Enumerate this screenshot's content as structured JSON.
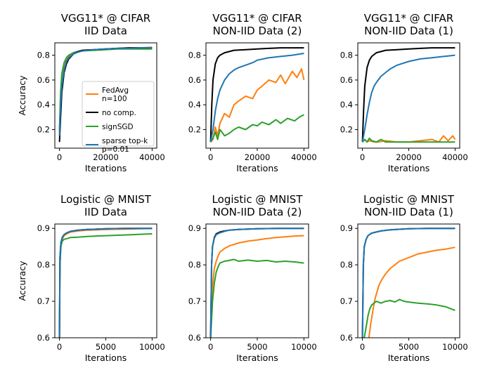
{
  "colors": {
    "FedAvg": "#ff7f0e",
    "no comp.": "#000000",
    "signSGD": "#2ca02c",
    "sparse top-k": "#1f77b4"
  },
  "legend": {
    "placement": "lower-right of top-left panel",
    "entries": [
      {
        "key": "FedAvg",
        "lines": [
          "FedAvg",
          "n=100"
        ]
      },
      {
        "key": "no comp.",
        "lines": [
          "no comp."
        ]
      },
      {
        "key": "signSGD",
        "lines": [
          "signSGD"
        ]
      },
      {
        "key": "sparse top-k",
        "lines": [
          "sparse top-k",
          "p=0.01"
        ]
      }
    ]
  },
  "chart_data": [
    {
      "type": "line",
      "title": [
        "VGG11* @ CIFAR",
        "IID Data"
      ],
      "xlabel": "Iterations",
      "ylabel": "Accuracy",
      "xlim": [
        -2000,
        42000
      ],
      "ylim": [
        0.05,
        0.9
      ],
      "xticks": [
        0,
        20000,
        40000
      ],
      "yticks": [
        0.2,
        0.4,
        0.6,
        0.8
      ],
      "series": [
        {
          "name": "FedAvg",
          "x": [
            0,
            500,
            1000,
            2000,
            3000,
            4000,
            6000,
            8000,
            10000,
            15000,
            20000,
            25000,
            30000,
            35000,
            40000
          ],
          "y": [
            0.18,
            0.42,
            0.58,
            0.7,
            0.76,
            0.79,
            0.82,
            0.83,
            0.84,
            0.845,
            0.85,
            0.855,
            0.86,
            0.86,
            0.865
          ]
        },
        {
          "name": "no comp.",
          "x": [
            0,
            500,
            1000,
            2000,
            3000,
            4000,
            6000,
            8000,
            10000,
            15000,
            20000,
            25000,
            30000,
            35000,
            40000
          ],
          "y": [
            0.1,
            0.3,
            0.5,
            0.66,
            0.73,
            0.77,
            0.81,
            0.83,
            0.84,
            0.845,
            0.85,
            0.855,
            0.86,
            0.86,
            0.86
          ]
        },
        {
          "name": "signSGD",
          "x": [
            0,
            500,
            1000,
            2000,
            3000,
            4000,
            6000,
            8000,
            10000,
            15000,
            20000,
            25000,
            30000,
            35000,
            40000
          ],
          "y": [
            0.2,
            0.5,
            0.65,
            0.74,
            0.78,
            0.8,
            0.82,
            0.83,
            0.835,
            0.84,
            0.845,
            0.85,
            0.85,
            0.85,
            0.85
          ]
        },
        {
          "name": "sparse top-k",
          "x": [
            0,
            500,
            1000,
            2000,
            3000,
            4000,
            6000,
            8000,
            10000,
            15000,
            20000,
            25000,
            30000,
            35000,
            40000
          ],
          "y": [
            0.15,
            0.4,
            0.55,
            0.68,
            0.75,
            0.78,
            0.81,
            0.825,
            0.835,
            0.845,
            0.85,
            0.855,
            0.855,
            0.86,
            0.86
          ]
        }
      ]
    },
    {
      "type": "line",
      "title": [
        "VGG11* @ CIFAR",
        "NON-IID Data (2)"
      ],
      "xlabel": "Iterations",
      "ylabel": "",
      "xlim": [
        -2000,
        42000
      ],
      "ylim": [
        0.05,
        0.9
      ],
      "xticks": [
        0,
        20000,
        40000
      ],
      "yticks": [
        0.2,
        0.4,
        0.6,
        0.8
      ],
      "series": [
        {
          "name": "FedAvg",
          "x": [
            0,
            1000,
            2000,
            3000,
            4000,
            6000,
            8000,
            10000,
            12000,
            15000,
            18000,
            20000,
            22000,
            25000,
            28000,
            30000,
            32000,
            35000,
            37000,
            39000,
            40000
          ],
          "y": [
            0.1,
            0.12,
            0.22,
            0.15,
            0.25,
            0.33,
            0.3,
            0.4,
            0.43,
            0.47,
            0.45,
            0.52,
            0.55,
            0.6,
            0.58,
            0.64,
            0.57,
            0.67,
            0.62,
            0.69,
            0.6
          ]
        },
        {
          "name": "no comp.",
          "x": [
            0,
            500,
            1000,
            2000,
            3000,
            4000,
            6000,
            8000,
            10000,
            15000,
            20000,
            25000,
            30000,
            35000,
            40000
          ],
          "y": [
            0.1,
            0.4,
            0.6,
            0.73,
            0.78,
            0.8,
            0.82,
            0.83,
            0.84,
            0.845,
            0.85,
            0.855,
            0.86,
            0.86,
            0.86
          ]
        },
        {
          "name": "signSGD",
          "x": [
            0,
            1000,
            2000,
            3000,
            4000,
            6000,
            8000,
            10000,
            12000,
            15000,
            18000,
            20000,
            22000,
            25000,
            28000,
            30000,
            33000,
            36000,
            38000,
            40000
          ],
          "y": [
            0.1,
            0.13,
            0.18,
            0.12,
            0.2,
            0.15,
            0.17,
            0.2,
            0.22,
            0.2,
            0.24,
            0.23,
            0.26,
            0.24,
            0.28,
            0.25,
            0.29,
            0.27,
            0.3,
            0.32
          ]
        },
        {
          "name": "sparse top-k",
          "x": [
            0,
            1000,
            2000,
            3000,
            4000,
            6000,
            8000,
            10000,
            12000,
            15000,
            18000,
            20000,
            25000,
            30000,
            35000,
            40000
          ],
          "y": [
            0.1,
            0.2,
            0.35,
            0.45,
            0.52,
            0.6,
            0.65,
            0.68,
            0.7,
            0.72,
            0.74,
            0.76,
            0.78,
            0.79,
            0.8,
            0.815
          ]
        }
      ]
    },
    {
      "type": "line",
      "title": [
        "VGG11* @ CIFAR",
        "NON-IID Data (1)"
      ],
      "xlabel": "Iterations",
      "ylabel": "",
      "xlim": [
        -2000,
        42000
      ],
      "ylim": [
        0.05,
        0.9
      ],
      "xticks": [
        0,
        20000,
        40000
      ],
      "yticks": [
        0.2,
        0.4,
        0.6,
        0.8
      ],
      "series": [
        {
          "name": "FedAvg",
          "x": [
            0,
            1000,
            2000,
            3000,
            5000,
            7000,
            10000,
            15000,
            20000,
            25000,
            30000,
            33000,
            35000,
            37000,
            39000,
            40000
          ],
          "y": [
            0.1,
            0.12,
            0.1,
            0.11,
            0.1,
            0.1,
            0.11,
            0.1,
            0.1,
            0.11,
            0.12,
            0.1,
            0.15,
            0.11,
            0.15,
            0.12
          ]
        },
        {
          "name": "no comp.",
          "x": [
            0,
            500,
            1000,
            2000,
            3000,
            4000,
            6000,
            8000,
            10000,
            15000,
            20000,
            25000,
            30000,
            35000,
            40000
          ],
          "y": [
            0.1,
            0.35,
            0.55,
            0.7,
            0.76,
            0.79,
            0.82,
            0.83,
            0.84,
            0.845,
            0.85,
            0.855,
            0.86,
            0.86,
            0.86
          ]
        },
        {
          "name": "signSGD",
          "x": [
            0,
            1000,
            2000,
            3000,
            4000,
            6000,
            8000,
            10000,
            15000,
            20000,
            25000,
            30000,
            35000,
            40000
          ],
          "y": [
            0.1,
            0.12,
            0.1,
            0.13,
            0.11,
            0.1,
            0.12,
            0.1,
            0.1,
            0.1,
            0.1,
            0.1,
            0.1,
            0.1
          ]
        },
        {
          "name": "sparse top-k",
          "x": [
            0,
            1000,
            2000,
            3000,
            4000,
            5000,
            6000,
            8000,
            10000,
            12000,
            15000,
            20000,
            25000,
            30000,
            35000,
            40000
          ],
          "y": [
            0.1,
            0.2,
            0.32,
            0.42,
            0.5,
            0.55,
            0.58,
            0.63,
            0.66,
            0.69,
            0.72,
            0.75,
            0.77,
            0.78,
            0.79,
            0.8
          ]
        }
      ]
    },
    {
      "type": "line",
      "title": [
        "Logistic @ MNIST",
        "IID Data"
      ],
      "xlabel": "Iterations",
      "ylabel": "Accuracy",
      "xlim": [
        -500,
        10500
      ],
      "ylim": [
        0.6,
        0.912
      ],
      "xticks": [
        0,
        5000,
        10000
      ],
      "yticks": [
        0.6,
        0.7,
        0.8,
        0.9
      ],
      "series": [
        {
          "name": "FedAvg",
          "x": [
            0,
            50,
            150,
            300,
            500,
            800,
            1200,
            2000,
            3000,
            5000,
            7000,
            10000
          ],
          "y": [
            0.6,
            0.8,
            0.85,
            0.87,
            0.88,
            0.885,
            0.89,
            0.893,
            0.895,
            0.897,
            0.898,
            0.9
          ]
        },
        {
          "name": "no comp.",
          "x": [
            0,
            50,
            150,
            300,
            500,
            800,
            1200,
            2000,
            3000,
            5000,
            7000,
            10000
          ],
          "y": [
            0.6,
            0.82,
            0.86,
            0.875,
            0.883,
            0.888,
            0.892,
            0.895,
            0.897,
            0.899,
            0.9,
            0.9
          ]
        },
        {
          "name": "signSGD",
          "x": [
            0,
            50,
            150,
            300,
            500,
            800,
            1200,
            2000,
            3000,
            4000,
            5000,
            6000,
            7000,
            8000,
            9000,
            10000
          ],
          "y": [
            0.6,
            0.8,
            0.85,
            0.865,
            0.87,
            0.872,
            0.875,
            0.876,
            0.878,
            0.879,
            0.88,
            0.881,
            0.882,
            0.883,
            0.884,
            0.885
          ]
        },
        {
          "name": "sparse top-k",
          "x": [
            0,
            50,
            150,
            300,
            500,
            800,
            1200,
            2000,
            3000,
            5000,
            7000,
            10000
          ],
          "y": [
            0.6,
            0.82,
            0.86,
            0.875,
            0.883,
            0.888,
            0.892,
            0.895,
            0.897,
            0.899,
            0.9,
            0.9
          ]
        }
      ]
    },
    {
      "type": "line",
      "title": [
        "Logistic @ MNIST",
        "NON-IID Data (2)"
      ],
      "xlabel": "Iterations",
      "ylabel": "",
      "xlim": [
        -500,
        10500
      ],
      "ylim": [
        0.6,
        0.912
      ],
      "xticks": [
        0,
        5000,
        10000
      ],
      "yticks": [
        0.6,
        0.7,
        0.8,
        0.9
      ],
      "series": [
        {
          "name": "FedAvg",
          "x": [
            0,
            100,
            200,
            400,
            600,
            800,
            1000,
            1500,
            2000,
            3000,
            4000,
            5000,
            6000,
            7000,
            8000,
            9000,
            10000
          ],
          "y": [
            0.6,
            0.68,
            0.74,
            0.79,
            0.81,
            0.825,
            0.835,
            0.845,
            0.852,
            0.86,
            0.865,
            0.868,
            0.872,
            0.875,
            0.877,
            0.879,
            0.88
          ]
        },
        {
          "name": "no comp.",
          "x": [
            0,
            100,
            200,
            400,
            600,
            1000,
            1500,
            2000,
            3000,
            5000,
            7000,
            10000
          ],
          "y": [
            0.6,
            0.8,
            0.85,
            0.875,
            0.885,
            0.89,
            0.893,
            0.895,
            0.897,
            0.899,
            0.9,
            0.9
          ]
        },
        {
          "name": "signSGD",
          "x": [
            0,
            100,
            200,
            400,
            600,
            800,
            1000,
            1500,
            2000,
            2500,
            3000,
            4000,
            5000,
            6000,
            7000,
            8000,
            9000,
            10000
          ],
          "y": [
            0.6,
            0.65,
            0.7,
            0.75,
            0.78,
            0.795,
            0.805,
            0.81,
            0.812,
            0.815,
            0.81,
            0.813,
            0.81,
            0.812,
            0.808,
            0.81,
            0.808,
            0.805
          ]
        },
        {
          "name": "sparse top-k",
          "x": [
            0,
            100,
            200,
            400,
            600,
            1000,
            1500,
            2000,
            3000,
            5000,
            7000,
            10000
          ],
          "y": [
            0.6,
            0.8,
            0.85,
            0.873,
            0.883,
            0.888,
            0.892,
            0.895,
            0.897,
            0.899,
            0.9,
            0.9
          ]
        }
      ]
    },
    {
      "type": "line",
      "title": [
        "Logistic @ MNIST",
        "NON-IID Data (1)"
      ],
      "xlabel": "Iterations",
      "ylabel": "",
      "xlim": [
        -500,
        10500
      ],
      "ylim": [
        0.6,
        0.912
      ],
      "xticks": [
        0,
        5000,
        10000
      ],
      "yticks": [
        0.6,
        0.7,
        0.8,
        0.9
      ],
      "series": [
        {
          "name": "FedAvg",
          "x": [
            700,
            900,
            1100,
            1300,
            1500,
            1800,
            2100,
            2500,
            3000,
            3500,
            4000,
            5000,
            6000,
            7000,
            8000,
            9000,
            10000
          ],
          "y": [
            0.6,
            0.64,
            0.67,
            0.7,
            0.72,
            0.745,
            0.76,
            0.775,
            0.79,
            0.8,
            0.81,
            0.82,
            0.83,
            0.835,
            0.84,
            0.843,
            0.848
          ]
        },
        {
          "name": "no comp.",
          "x": [
            0,
            100,
            200,
            400,
            600,
            1000,
            1500,
            2000,
            3000,
            5000,
            7000,
            10000
          ],
          "y": [
            0.6,
            0.8,
            0.85,
            0.87,
            0.88,
            0.887,
            0.89,
            0.893,
            0.896,
            0.899,
            0.9,
            0.9
          ]
        },
        {
          "name": "signSGD",
          "x": [
            200,
            400,
            600,
            800,
            1000,
            1500,
            2000,
            2500,
            3000,
            3500,
            4000,
            4500,
            5000,
            6000,
            7000,
            8000,
            9000,
            10000
          ],
          "y": [
            0.6,
            0.63,
            0.66,
            0.68,
            0.69,
            0.7,
            0.695,
            0.7,
            0.702,
            0.698,
            0.705,
            0.7,
            0.698,
            0.695,
            0.693,
            0.69,
            0.685,
            0.675
          ]
        },
        {
          "name": "sparse top-k",
          "x": [
            0,
            100,
            200,
            400,
            600,
            1000,
            1500,
            2000,
            3000,
            5000,
            7000,
            10000
          ],
          "y": [
            0.6,
            0.8,
            0.85,
            0.87,
            0.88,
            0.887,
            0.89,
            0.893,
            0.896,
            0.899,
            0.9,
            0.9
          ]
        }
      ]
    }
  ]
}
